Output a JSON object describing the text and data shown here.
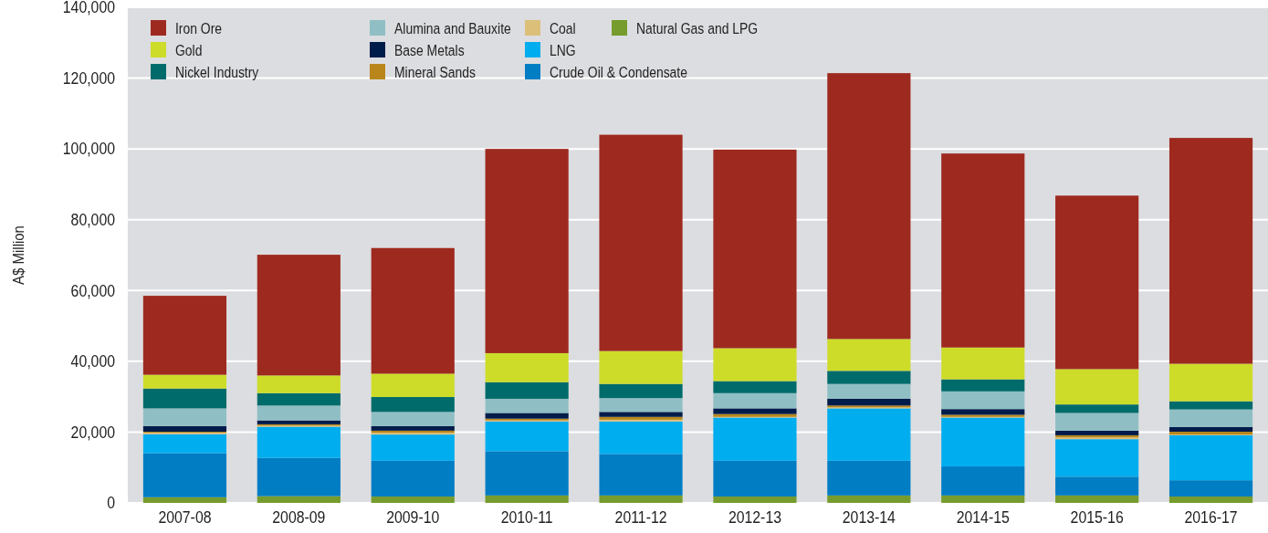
{
  "chart_data": {
    "type": "bar",
    "stacked": true,
    "ylabel": "A$ Million",
    "categories": [
      "2007-08",
      "2008-09",
      "2009-10",
      "2010-11",
      "2011-12",
      "2012-13",
      "2013-14",
      "2014-15",
      "2015-16",
      "2016-17"
    ],
    "ylim": [
      0,
      140000
    ],
    "yticks": [
      {
        "value": 0,
        "label": "0"
      },
      {
        "value": 20000,
        "label": "20,000"
      },
      {
        "value": 40000,
        "label": "40,000"
      },
      {
        "value": 60000,
        "label": "60,000"
      },
      {
        "value": 80000,
        "label": "80,000"
      },
      {
        "value": 100000,
        "label": "100,000"
      },
      {
        "value": 120000,
        "label": "120,000"
      },
      {
        "value": 140000,
        "label": "140,000"
      }
    ],
    "grid": "y",
    "legend": "top left",
    "series": [
      {
        "name": "Natural Gas and LPG",
        "color": "#759c2d",
        "values": [
          1600,
          1900,
          1800,
          2100,
          2100,
          1800,
          2100,
          2100,
          2100,
          1800
        ]
      },
      {
        "name": "Crude Oil & Condensate",
        "color": "#017dc4",
        "values": [
          12400,
          10800,
          10100,
          12500,
          11700,
          10100,
          9800,
          8200,
          5300,
          4600
        ]
      },
      {
        "name": "LNG",
        "color": "#00adee",
        "values": [
          5400,
          8800,
          7400,
          8400,
          9200,
          12200,
          14800,
          13800,
          10600,
          12700
        ]
      },
      {
        "name": "Coal",
        "color": "#dcc07a",
        "values": [
          400,
          300,
          500,
          300,
          500,
          200,
          300,
          200,
          500,
          200
        ]
      },
      {
        "name": "Mineral Sands",
        "color": "#b8861a",
        "values": [
          300,
          400,
          600,
          500,
          800,
          800,
          500,
          600,
          600,
          800
        ]
      },
      {
        "name": "Base Metals",
        "color": "#001c4a",
        "values": [
          1600,
          1100,
          1300,
          1600,
          1400,
          1600,
          1900,
          1600,
          1300,
          1300
        ]
      },
      {
        "name": "Alumina and Bauxite",
        "color": "#8fbfc4",
        "values": [
          5000,
          4200,
          4000,
          4000,
          3900,
          4300,
          4200,
          5000,
          5000,
          5000
        ]
      },
      {
        "name": "Nickel Industry",
        "color": "#006b6b",
        "values": [
          5600,
          3500,
          4200,
          4700,
          4000,
          3400,
          3700,
          3400,
          2400,
          2300
        ]
      },
      {
        "name": "Gold",
        "color": "#cddc29",
        "values": [
          3900,
          5000,
          6600,
          8200,
          9300,
          9300,
          9000,
          9000,
          10000,
          10600
        ]
      },
      {
        "name": "Iron Ore",
        "color": "#9e2a1f",
        "values": [
          22300,
          34100,
          35500,
          57700,
          61100,
          56100,
          75100,
          54800,
          49000,
          63800
        ]
      }
    ]
  }
}
